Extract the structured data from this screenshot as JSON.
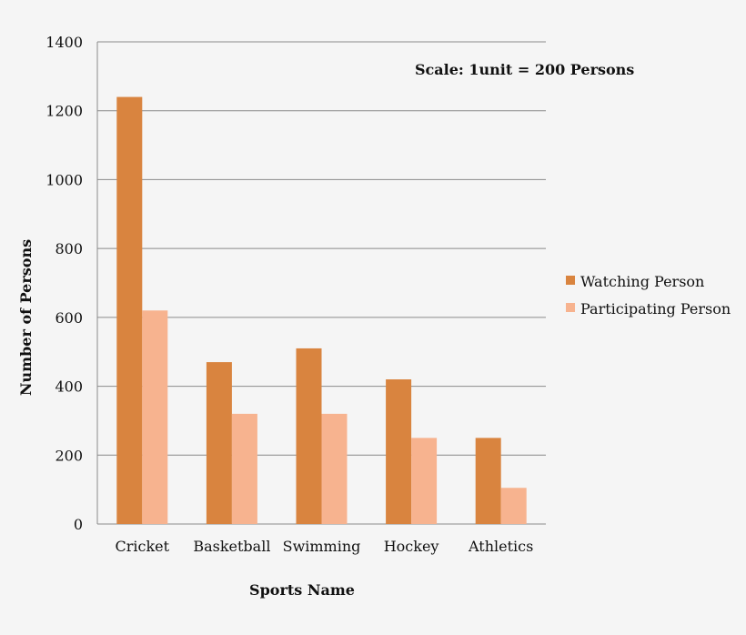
{
  "chart_data": {
    "type": "bar",
    "title": "",
    "xlabel": "Sports Name",
    "ylabel": "Number of Persons",
    "annotation": "Scale: 1unit = 200 Persons",
    "categories": [
      "Cricket",
      "Basketball",
      "Swimming",
      "Hockey",
      "Athletics"
    ],
    "series": [
      {
        "name": "Watching Person",
        "color": "#d9843f",
        "values": [
          1240,
          470,
          510,
          420,
          250
        ]
      },
      {
        "name": "Participating Person",
        "color": "#f7b38f",
        "values": [
          620,
          320,
          320,
          250,
          105
        ]
      }
    ],
    "ylim": [
      0,
      1400
    ],
    "yticks": [
      "0",
      "200",
      "400",
      "600",
      "800",
      "1000",
      "1200",
      "1400"
    ],
    "grid": true,
    "legend_position": "right"
  }
}
